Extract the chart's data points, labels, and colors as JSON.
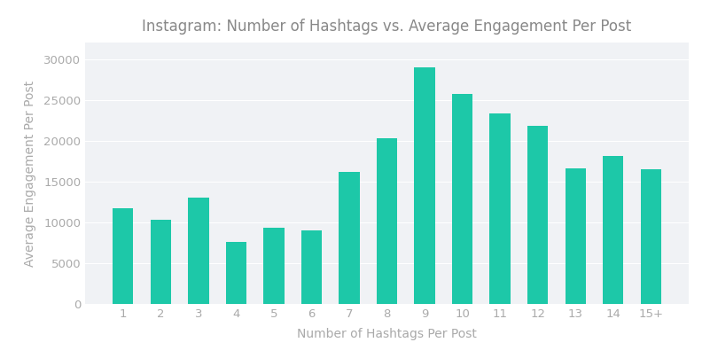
{
  "title": "Instagram: Number of Hashtags vs. Average Engagement Per Post",
  "xlabel": "Number of Hashtags Per Post",
  "ylabel": "Average Engagement Per Post",
  "categories": [
    "1",
    "2",
    "3",
    "4",
    "5",
    "6",
    "7",
    "8",
    "9",
    "10",
    "11",
    "12",
    "13",
    "14",
    "15+"
  ],
  "values": [
    11800,
    10300,
    13100,
    7600,
    9400,
    9100,
    16200,
    20300,
    29000,
    25800,
    23400,
    21800,
    16600,
    18200,
    16500
  ],
  "bar_color": "#1dc8a8",
  "figure_bg": "#ffffff",
  "chart_bg": "#f0f2f5",
  "title_fontsize": 12,
  "label_fontsize": 10,
  "tick_fontsize": 9.5,
  "ylim": [
    0,
    32000
  ],
  "yticks": [
    0,
    5000,
    10000,
    15000,
    20000,
    25000,
    30000
  ],
  "text_color": "#aaaaaa",
  "title_color": "#888888"
}
